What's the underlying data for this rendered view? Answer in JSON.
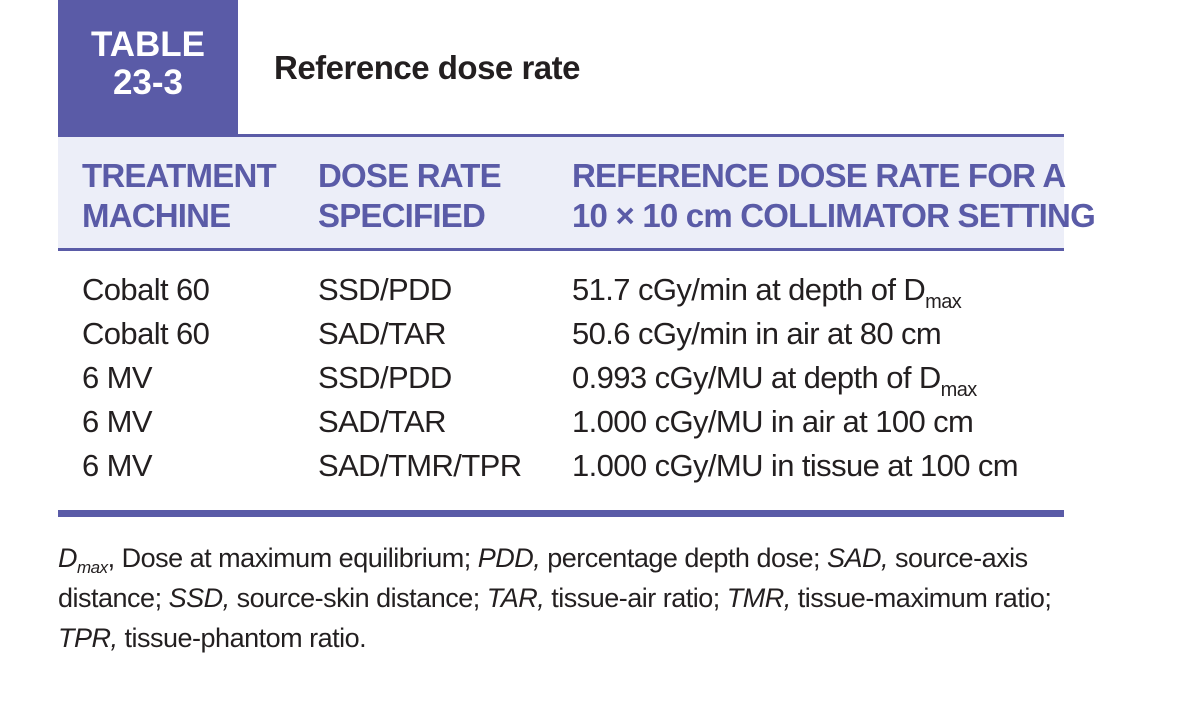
{
  "table": {
    "badge_line1": "TABLE",
    "badge_line2": "23-3",
    "title": "Reference dose rate",
    "colors": {
      "accent": "#5a5ba7",
      "header_band": "#eceef8",
      "text": "#231f20"
    }
  },
  "columns": [
    {
      "line1": "TREATMENT",
      "line2": "MACHINE"
    },
    {
      "line1": "DOSE RATE",
      "line2": "SPECIFIED"
    },
    {
      "line1": "REFERENCE DOSE RATE FOR A",
      "line2": "10 × 10 cm COLLIMATOR SETTING"
    }
  ],
  "rows": [
    {
      "machine": "Cobalt 60",
      "specified": "SSD/PDD",
      "rate": "51.7 cGy/min at depth of D",
      "rate_sub": "max"
    },
    {
      "machine": "Cobalt 60",
      "specified": "SAD/TAR",
      "rate": "50.6 cGy/min in air at 80 cm",
      "rate_sub": ""
    },
    {
      "machine": "6 MV",
      "specified": "SSD/PDD",
      "rate": "0.993 cGy/MU at depth of D",
      "rate_sub": "max"
    },
    {
      "machine": "6 MV",
      "specified": "SAD/TAR",
      "rate": "1.000 cGy/MU in air at 100 cm",
      "rate_sub": ""
    },
    {
      "machine": "6 MV",
      "specified": "SAD/TMR/TPR",
      "rate": "1.000 cGy/MU in tissue at 100 cm",
      "rate_sub": ""
    }
  ],
  "footnote": {
    "dmax_base": "D",
    "dmax_sub": "max",
    "dmax_def": ", Dose at maximum equilibrium; ",
    "pdd": "PDD,",
    "pdd_def": " percentage depth dose; ",
    "sad": "SAD,",
    "sad_def": " source-axis distance; ",
    "ssd": "SSD,",
    "ssd_def": " source-skin distance; ",
    "tar": "TAR,",
    "tar_def": " tissue-air ratio; ",
    "tmr": "TMR,",
    "tmr_def": " tissue-maximum ratio; ",
    "tpr": "TPR,",
    "tpr_def": " tissue-phantom ratio."
  }
}
